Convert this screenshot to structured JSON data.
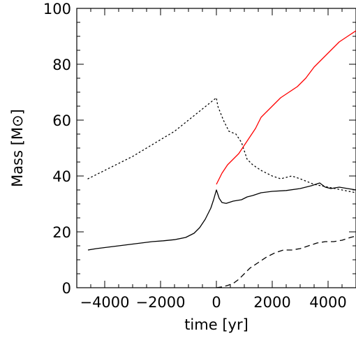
{
  "chart_data": {
    "type": "line",
    "xlabel": "time [yr]",
    "ylabel": "Mass [M⊙]",
    "xlim": [
      -5000,
      5000
    ],
    "ylim": [
      0,
      100
    ],
    "x_ticks": [
      -4000,
      -2000,
      0,
      2000,
      4000
    ],
    "x_tick_labels": [
      "−4000",
      "−2000",
      "0",
      "2000",
      "4000"
    ],
    "y_ticks": [
      0,
      20,
      40,
      60,
      80,
      100
    ],
    "y_tick_labels": [
      "0",
      "20",
      "40",
      "60",
      "80",
      "100"
    ],
    "grid": false,
    "legend": "none",
    "series": [
      {
        "style": "dotted",
        "color": "#000000",
        "x": [
          -4600,
          -3000,
          -1500,
          0,
          50,
          250,
          450,
          700,
          900,
          1100,
          1300,
          1600,
          2000,
          2300,
          2700,
          3000,
          3500,
          4000,
          4500,
          5000
        ],
        "y": [
          39,
          47,
          56,
          68,
          65,
          60,
          56,
          55,
          52,
          46,
          44,
          42,
          40,
          39,
          40,
          39,
          37,
          36,
          35,
          34
        ]
      },
      {
        "style": "solid",
        "color": "#000000",
        "x": [
          -4600,
          -4300,
          -3900,
          -3500,
          -3100,
          -2700,
          -2300,
          -1900,
          -1500,
          -1100,
          -800,
          -600,
          -400,
          -200,
          -100,
          0,
          100,
          200,
          350,
          600,
          900,
          1100,
          1300,
          1600,
          2000,
          2500,
          3000,
          3400,
          3700,
          3900,
          4100,
          4400,
          4700,
          5000
        ],
        "y": [
          13.5,
          14,
          14.5,
          15,
          15.5,
          16,
          16.5,
          16.8,
          17.2,
          18,
          19.5,
          21.5,
          24.5,
          28.5,
          31.5,
          35,
          32,
          30.5,
          30.2,
          31,
          31.5,
          32.5,
          33,
          34,
          34.5,
          34.8,
          35.5,
          36.5,
          37.5,
          36,
          35.5,
          36,
          35.5,
          35
        ]
      },
      {
        "style": "solid",
        "color": "#ff0000",
        "x": [
          0,
          200,
          400,
          600,
          800,
          1000,
          1200,
          1400,
          1600,
          1800,
          2000,
          2300,
          2600,
          2900,
          3200,
          3500,
          3800,
          4100,
          4400,
          4700,
          5000
        ],
        "y": [
          37,
          41,
          44,
          46,
          48,
          51,
          54,
          57,
          61,
          63,
          65,
          68,
          70,
          72,
          75,
          79,
          82,
          85,
          88,
          90,
          92
        ]
      },
      {
        "style": "dashed",
        "color": "#000000",
        "x": [
          0,
          200,
          400,
          600,
          800,
          1000,
          1200,
          1500,
          1800,
          2100,
          2400,
          2700,
          3000,
          3300,
          3600,
          3900,
          4200,
          4500,
          4800,
          5000
        ],
        "y": [
          0,
          0.3,
          0.8,
          1.5,
          3,
          5,
          7,
          9,
          11,
          12.5,
          13.5,
          13.5,
          14,
          15,
          16,
          16.5,
          16.5,
          17,
          18,
          18.5
        ]
      }
    ]
  }
}
